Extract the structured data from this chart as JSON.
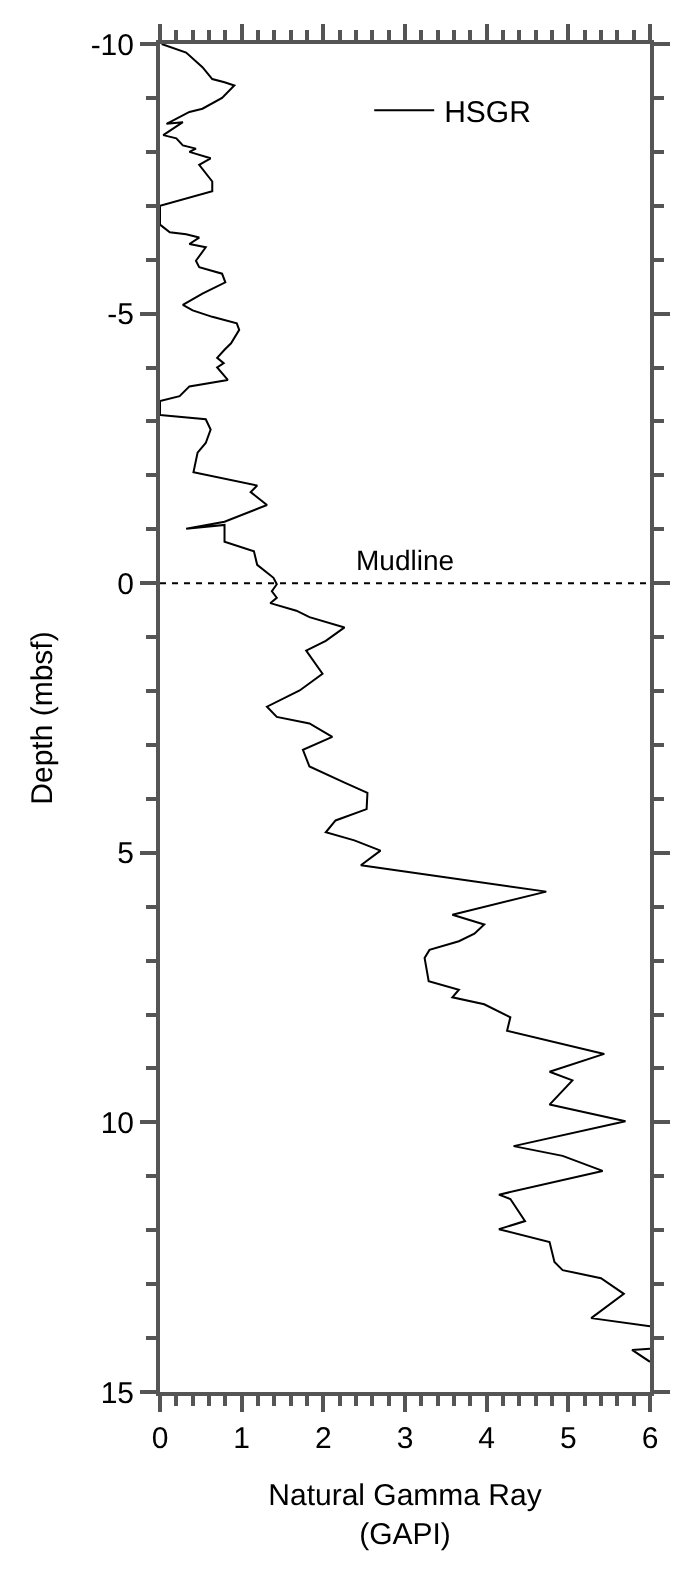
{
  "chart_data": {
    "type": "line",
    "xlabel": "Natural Gamma Ray\n(GAPI)",
    "ylabel": "Depth (mbsf)",
    "series": [
      {
        "name": "HSGR",
        "color": "#000000",
        "x": [
          0.02,
          0.32,
          0.52,
          0.64,
          0.79,
          0.91,
          0.76,
          0.52,
          0.36,
          0.08,
          0.28,
          0.04,
          0.2,
          0.28,
          0.44,
          0.36,
          0.62,
          0.48,
          0.64,
          0.64,
          0.0,
          0.0,
          0.12,
          0.32,
          0.48,
          0.36,
          0.56,
          0.44,
          0.48,
          0.76,
          0.8,
          0.52,
          0.28,
          0.4,
          0.64,
          0.94,
          0.97,
          0.87,
          0.79,
          0.7,
          0.78,
          0.7,
          0.83,
          0.36,
          0.24,
          0.0,
          0.0,
          0.56,
          0.62,
          0.56,
          0.46,
          0.41,
          1.19,
          1.11,
          1.31,
          0.79,
          0.32,
          0.79,
          0.79,
          1.15,
          1.19,
          1.39,
          1.43,
          1.37,
          1.43,
          1.35,
          1.67,
          1.83,
          2.26,
          2.03,
          1.79,
          1.99,
          1.71,
          1.31,
          1.43,
          1.83,
          2.11,
          1.75,
          1.83,
          2.26,
          2.54,
          2.53,
          2.15,
          2.03,
          2.38,
          2.7,
          2.46,
          4.73,
          3.58,
          3.97,
          3.85,
          3.66,
          3.3,
          3.24,
          3.29,
          3.66,
          3.58,
          3.97,
          4.29,
          4.25,
          5.44,
          4.77,
          5.05,
          4.77,
          5.7,
          4.33,
          4.93,
          5.42,
          4.15,
          4.29,
          4.47,
          4.15,
          4.77,
          4.83,
          4.93,
          5.4,
          5.68,
          5.28,
          6.0,
          null,
          6.0,
          5.78,
          6.0
        ],
        "values": [
          -10.0,
          -9.84,
          -9.57,
          -9.35,
          -9.29,
          -9.23,
          -9.0,
          -8.8,
          -8.74,
          -8.52,
          -8.55,
          -8.31,
          -8.25,
          -8.12,
          -8.06,
          -8.0,
          -7.88,
          -7.76,
          -7.45,
          -7.27,
          -7.0,
          -6.65,
          -6.51,
          -6.47,
          -6.41,
          -6.29,
          -6.23,
          -5.98,
          -5.86,
          -5.74,
          -5.58,
          -5.37,
          -5.16,
          -5.06,
          -4.94,
          -4.82,
          -4.7,
          -4.45,
          -4.33,
          -4.18,
          -4.08,
          -4.0,
          -3.77,
          -3.65,
          -3.47,
          -3.38,
          -3.12,
          -3.04,
          -2.85,
          -2.6,
          -2.42,
          -2.06,
          -1.81,
          -1.69,
          -1.45,
          -1.14,
          -1.01,
          -1.08,
          -0.77,
          -0.59,
          -0.34,
          -0.1,
          0.02,
          0.15,
          0.27,
          0.37,
          0.51,
          0.63,
          0.82,
          1.07,
          1.25,
          1.68,
          1.99,
          2.29,
          2.48,
          2.6,
          2.85,
          3.09,
          3.4,
          3.7,
          3.89,
          4.19,
          4.4,
          4.62,
          4.77,
          4.96,
          5.23,
          5.72,
          6.15,
          6.33,
          6.5,
          6.64,
          6.8,
          6.95,
          7.38,
          7.54,
          7.68,
          7.81,
          8.05,
          8.3,
          8.73,
          9.06,
          9.22,
          9.67,
          9.98,
          10.44,
          10.62,
          10.9,
          11.34,
          11.42,
          11.83,
          11.98,
          12.22,
          12.59,
          12.74,
          12.89,
          13.18,
          13.63,
          13.78,
          null,
          14.2,
          14.22,
          14.44
        ]
      }
    ],
    "xlim": [
      0,
      6
    ],
    "xticks": [
      0,
      {
        "value": 0.2,
        "label": null
      },
      {
        "value": 0.4,
        "label": null
      },
      {
        "value": 0.6,
        "label": null
      },
      {
        "value": 0.8,
        "label": null
      },
      1,
      {
        "value": 1.2,
        "label": null
      },
      {
        "value": 1.4,
        "label": null
      },
      {
        "value": 1.6,
        "label": null
      },
      {
        "value": 1.8,
        "label": null
      },
      2,
      {
        "value": 2.2,
        "label": null
      },
      {
        "value": 2.4,
        "label": null
      },
      {
        "value": 2.6,
        "label": null
      },
      {
        "value": 2.8,
        "label": null
      },
      3,
      {
        "value": 3.2,
        "label": null
      },
      {
        "value": 3.4,
        "label": null
      },
      {
        "value": 3.6,
        "label": null
      },
      {
        "value": 3.8,
        "label": null
      },
      4,
      {
        "value": 4.2,
        "label": null
      },
      {
        "value": 4.4,
        "label": null
      },
      {
        "value": 4.6,
        "label": null
      },
      {
        "value": 4.8,
        "label": null
      },
      5,
      {
        "value": 5.2,
        "label": null
      },
      {
        "value": 5.4,
        "label": null
      },
      {
        "value": 5.6,
        "label": null
      },
      {
        "value": 5.8,
        "label": null
      },
      6
    ],
    "ylim": [
      15,
      -10
    ],
    "yticks": [
      -10,
      {
        "value": -9,
        "label": null
      },
      {
        "value": -8,
        "label": null
      },
      {
        "value": -7,
        "label": null
      },
      {
        "value": -6,
        "label": null
      },
      -5,
      {
        "value": -4,
        "label": null
      },
      {
        "value": -3,
        "label": null
      },
      {
        "value": -2,
        "label": null
      },
      {
        "value": -1,
        "label": null
      },
      0,
      {
        "value": 1,
        "label": null
      },
      {
        "value": 2,
        "label": null
      },
      {
        "value": 3,
        "label": null
      },
      {
        "value": 4,
        "label": null
      },
      5,
      {
        "value": 6,
        "label": null
      },
      {
        "value": 7,
        "label": null
      },
      {
        "value": 8,
        "label": null
      },
      {
        "value": 9,
        "label": null
      },
      10,
      {
        "value": 11,
        "label": null
      },
      {
        "value": 12,
        "label": null
      },
      {
        "value": 13,
        "label": null
      },
      {
        "value": 14,
        "label": null
      },
      15
    ],
    "ref_lines": [
      {
        "axis": "y",
        "value": 0,
        "label": "Mudline",
        "line_style": "dotted",
        "color": "#000000"
      }
    ],
    "legend": "top right",
    "line_style": "solid",
    "marker": "none"
  }
}
